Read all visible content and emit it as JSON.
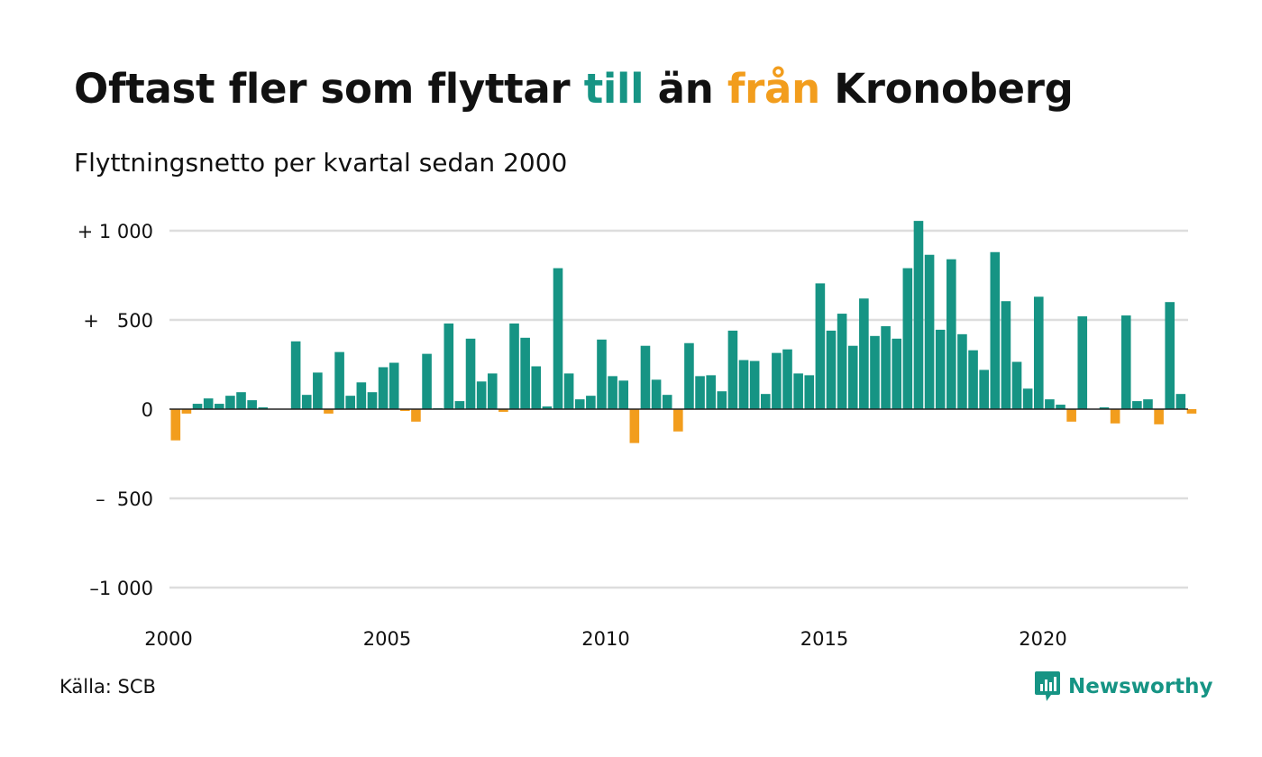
{
  "title": {
    "prefix": "Oftast fler som flyttar ",
    "word_to": "till",
    "middle": " än ",
    "word_from": "från",
    "suffix": " Kronoberg"
  },
  "subtitle": "Flyttningsnetto per kvartal sedan 2000",
  "source": "Källa: SCB",
  "brand": {
    "name": "Newsworthy",
    "icon": "newsworthy-logo-icon"
  },
  "colors": {
    "positive": "#169484",
    "negative": "#f29d1d",
    "grid": "#dddddd",
    "zero_line": "#222222",
    "text": "#111111"
  },
  "chart_data": {
    "type": "bar",
    "title": "Oftast fler som flyttar till än från Kronoberg",
    "subtitle": "Flyttningsnetto per kvartal sedan 2000",
    "x_start": 2000,
    "periods_per_year": 4,
    "ylim": [
      -1100,
      1050
    ],
    "y_ticks": [
      {
        "value": 1000,
        "label": "+ 1 000"
      },
      {
        "value": 500,
        "label": "+   500"
      },
      {
        "value": 0,
        "label": "0"
      },
      {
        "value": -500,
        "label": "–  500"
      },
      {
        "value": -1000,
        "label": "–1 000"
      }
    ],
    "x_ticks": [
      {
        "value": 2000,
        "label": "2000"
      },
      {
        "value": 2005,
        "label": "2005"
      },
      {
        "value": 2010,
        "label": "2010"
      },
      {
        "value": 2015,
        "label": "2015"
      },
      {
        "value": 2020,
        "label": "2020"
      }
    ],
    "grid": true,
    "values": [
      -175,
      -25,
      30,
      60,
      30,
      75,
      95,
      50,
      10,
      0,
      0,
      380,
      80,
      205,
      -25,
      320,
      75,
      150,
      95,
      235,
      260,
      -10,
      -70,
      310,
      5,
      480,
      45,
      395,
      155,
      200,
      -15,
      480,
      400,
      240,
      15,
      790,
      200,
      55,
      75,
      390,
      185,
      160,
      -190,
      355,
      165,
      80,
      -125,
      370,
      185,
      190,
      100,
      440,
      275,
      270,
      85,
      315,
      335,
      200,
      190,
      705,
      440,
      535,
      355,
      620,
      410,
      465,
      395,
      790,
      1055,
      865,
      445,
      840,
      420,
      330,
      220,
      880,
      605,
      265,
      115,
      630,
      55,
      25,
      -70,
      520,
      0,
      10,
      -80,
      525,
      45,
      55,
      -85,
      600,
      85,
      -25
    ]
  }
}
